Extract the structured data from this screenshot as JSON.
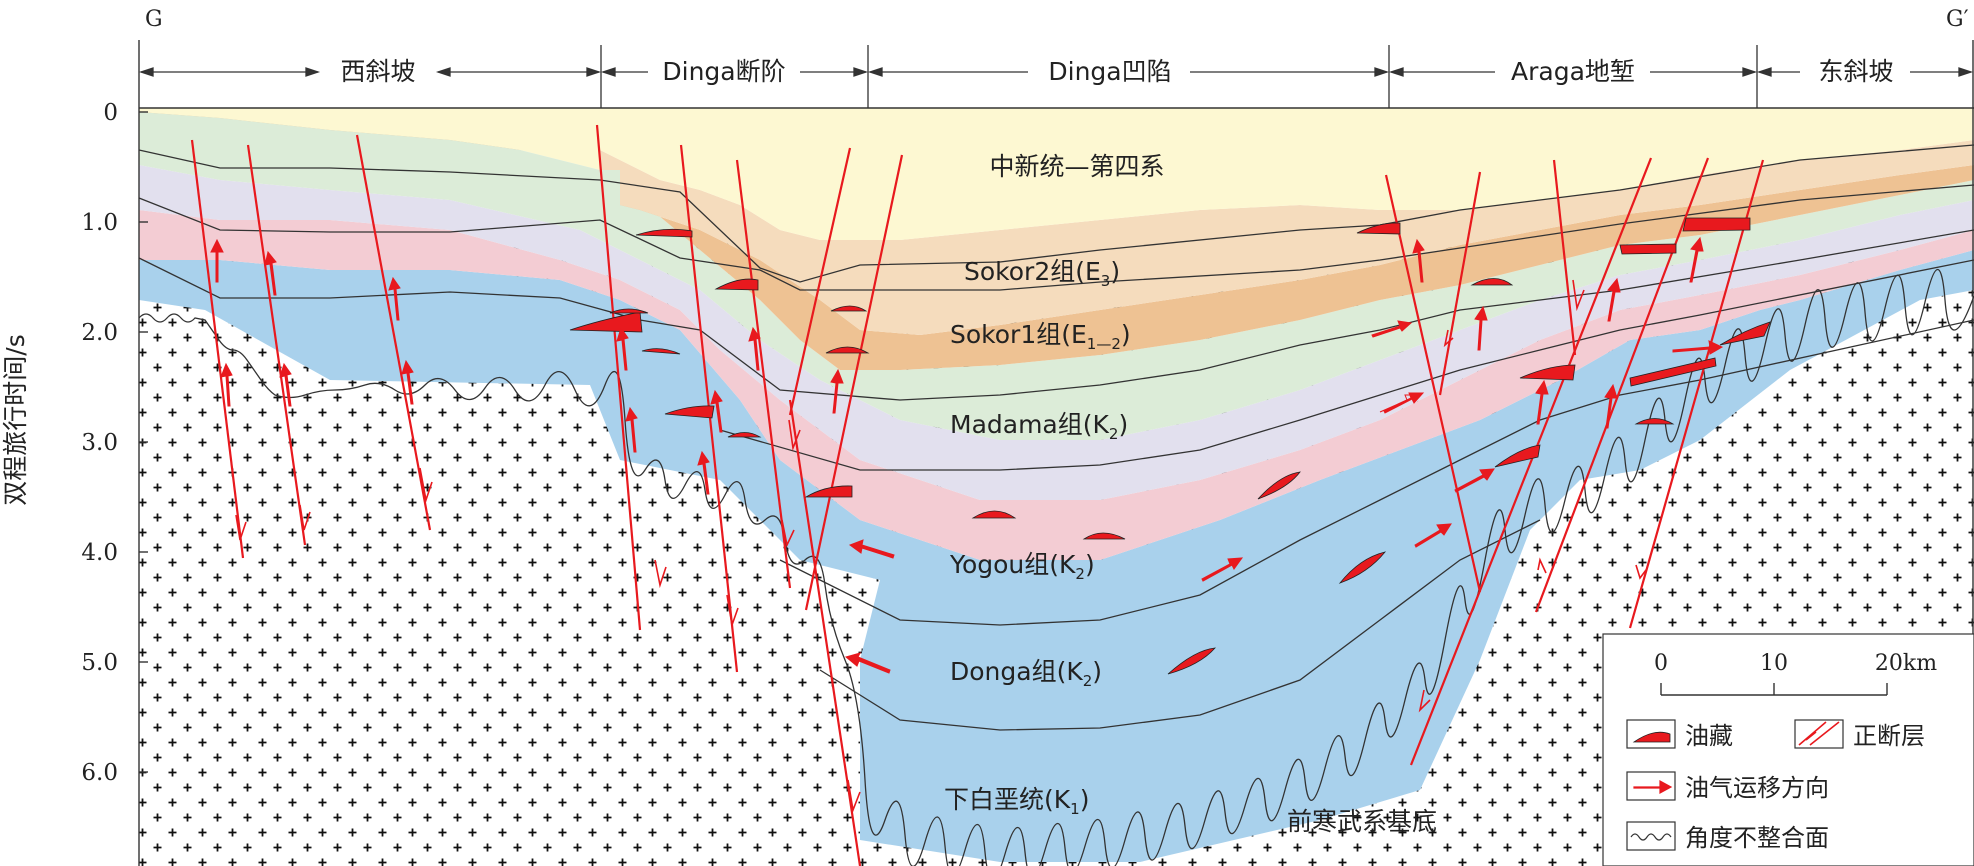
{
  "section": {
    "left_label": "G",
    "right_label": "G′"
  },
  "zones": [
    {
      "label": "西斜坡"
    },
    {
      "label": "Dinga断阶"
    },
    {
      "label": "Dinga凹陷"
    },
    {
      "label": "Araga地堑"
    },
    {
      "label": "东斜坡"
    }
  ],
  "axis": {
    "ylabel": "双程旅行时间/s",
    "ticks": [
      "0",
      "1.0",
      "2.0",
      "3.0",
      "4.0",
      "5.0",
      "6.0"
    ],
    "values": [
      0,
      1,
      2,
      3,
      4,
      5,
      6
    ]
  },
  "strata": [
    {
      "name": "中新统—第四系",
      "color": "#fdf8d2"
    },
    {
      "name": "Sokor2组(E3)",
      "main": "Sokor2组(E",
      "sub": "3",
      "close": ")",
      "color": "#f5dcbd"
    },
    {
      "name": "Sokor1组(E1—2)",
      "main": "Sokor1组(E",
      "sub": "1—2",
      "close": ")",
      "color": "#eec293"
    },
    {
      "name": "Madama组(K2)",
      "main": "Madama组(K",
      "sub": "2",
      "close": ")",
      "color": "#dcecd8"
    },
    {
      "name": "Yogou组(K2)",
      "main": "Yogou组(K",
      "sub": "2",
      "close": ")",
      "color": "#e2e0ee"
    },
    {
      "name": "Donga组(K2)",
      "main": "Donga组(K",
      "sub": "2",
      "close": ")",
      "color": "#f3ccd3"
    },
    {
      "name": "下白垩统(K1)",
      "main": "下白垩统(K",
      "sub": "1",
      "close": ")",
      "color": "#a9d1ec"
    }
  ],
  "basement": {
    "label": "前寒武系基底"
  },
  "scale": {
    "ticks": [
      "0",
      "10",
      "20km"
    ]
  },
  "legend": [
    {
      "label": "油藏",
      "icon": "oil-reservoir-icon"
    },
    {
      "label": "正断层",
      "icon": "normal-fault-icon"
    },
    {
      "label": "油气运移方向",
      "icon": "migration-arrow-icon"
    },
    {
      "label": "角度不整合面",
      "icon": "unconformity-icon"
    }
  ],
  "colors": {
    "fault": "#e8191e",
    "oil": "#e8191e",
    "cross": "#111111"
  }
}
